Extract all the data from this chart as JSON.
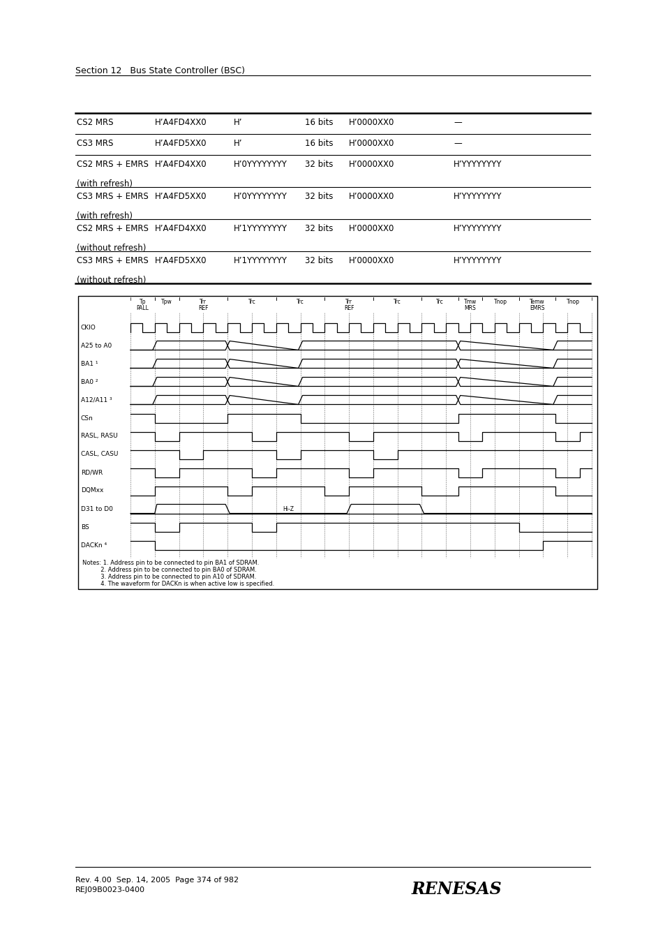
{
  "header_text": "Section 12   Bus State Controller (BSC)",
  "table_rows": [
    {
      "col1": "CS2 MRS",
      "col2": "H’A4FD4XX0",
      "col3": "H’",
      "col4": "16 bits",
      "col5": "H’0000XX0",
      "col6": "—"
    },
    {
      "col1": "CS3 MRS",
      "col2": "H’A4FD5XX0",
      "col3": "H’",
      "col4": "16 bits",
      "col5": "H’0000XX0",
      "col6": "—"
    },
    {
      "col1": "CS2 MRS + EMRS",
      "col2": "H’A4FD4XX0",
      "col3": "H’0YYYYYYYY",
      "col4": "32 bits",
      "col5": "H’0000XX0",
      "col6": "H’YYYYYYYY",
      "sub": "(with refresh)"
    },
    {
      "col1": "CS3 MRS + EMRS",
      "col2": "H’A4FD5XX0",
      "col3": "H’0YYYYYYYY",
      "col4": "32 bits",
      "col5": "H’0000XX0",
      "col6": "H’YYYYYYYY",
      "sub": "(with refresh)"
    },
    {
      "col1": "CS2 MRS + EMRS",
      "col2": "H’A4FD4XX0",
      "col3": "H’1YYYYYYYY",
      "col4": "32 bits",
      "col5": "H’0000XX0",
      "col6": "H’YYYYYYYY",
      "sub": "(without refresh)"
    },
    {
      "col1": "CS3 MRS + EMRS",
      "col2": "H’A4FD5XX0",
      "col3": "H’1YYYYYYYY",
      "col4": "32 bits",
      "col5": "H’0000XX0",
      "col6": "H’YYYYYYYY",
      "sub": "(without refresh)"
    }
  ],
  "footer_text1": "Rev. 4.00  Sep. 14, 2005  Page 374 of 982",
  "footer_text2": "REJ09B0023-0400",
  "signals": [
    "CKIO",
    "A25 to A0",
    "BA1 1",
    "BA0 2",
    "A12/A11 3",
    "CSn",
    "RASL, RASU",
    "CASL, CASU",
    "RD/WR",
    "DQMxx",
    "D31 to D0",
    "BS",
    "DACKn 4"
  ],
  "signal_labels": [
    "CKIO",
    "A25 to A0",
    "BA1 ¹",
    "BA0 ²",
    "A12/A11 ³",
    "CSn",
    "RASL, RASU",
    "CASL, CASU",
    "RD/WR",
    "DQMxx",
    "D31 to D0",
    "BS",
    "DACKn ⁴"
  ],
  "notes": [
    "Notes: 1. Address pin to be connected to pin BA1 of SDRAM.",
    "          2. Address pin to be connected to pin BA0 of SDRAM.",
    "          3. Address pin to be connected to pin A10 of SDRAM.",
    "          4. The waveform for DACKn is when active low is specified."
  ],
  "bg_color": "#ffffff"
}
